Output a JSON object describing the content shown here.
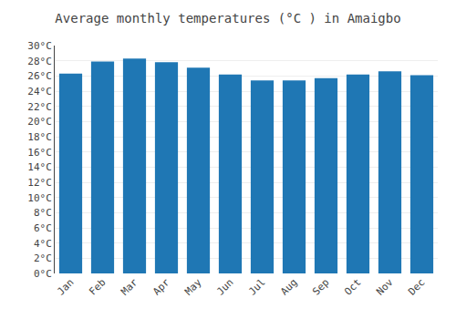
{
  "chart_data": {
    "type": "bar",
    "title": "Average monthly temperatures (°C ) in Amaigbo",
    "categories": [
      "Jan",
      "Feb",
      "Mar",
      "Apr",
      "May",
      "Jun",
      "Jul",
      "Aug",
      "Sep",
      "Oct",
      "Nov",
      "Dec"
    ],
    "values": [
      26.3,
      27.9,
      28.3,
      27.8,
      27.1,
      26.2,
      25.4,
      25.4,
      25.7,
      26.2,
      26.6,
      26.1
    ],
    "ylim": [
      0,
      30
    ],
    "yticks": [
      {
        "value": 0,
        "label": "0°C"
      },
      {
        "value": 2,
        "label": "2°C"
      },
      {
        "value": 4,
        "label": "4°C"
      },
      {
        "value": 6,
        "label": "6°C"
      },
      {
        "value": 8,
        "label": "8°C"
      },
      {
        "value": 10,
        "label": "10°C"
      },
      {
        "value": 12,
        "label": "12°C"
      },
      {
        "value": 14,
        "label": "14°C"
      },
      {
        "value": 16,
        "label": "16°C"
      },
      {
        "value": 18,
        "label": "18°C"
      },
      {
        "value": 20,
        "label": "20°C"
      },
      {
        "value": 22,
        "label": "22°C"
      },
      {
        "value": 24,
        "label": "24°C"
      },
      {
        "value": 26,
        "label": "26°C"
      },
      {
        "value": 28,
        "label": "28°C"
      },
      {
        "value": 30,
        "label": "30°C"
      }
    ],
    "grid": true
  }
}
